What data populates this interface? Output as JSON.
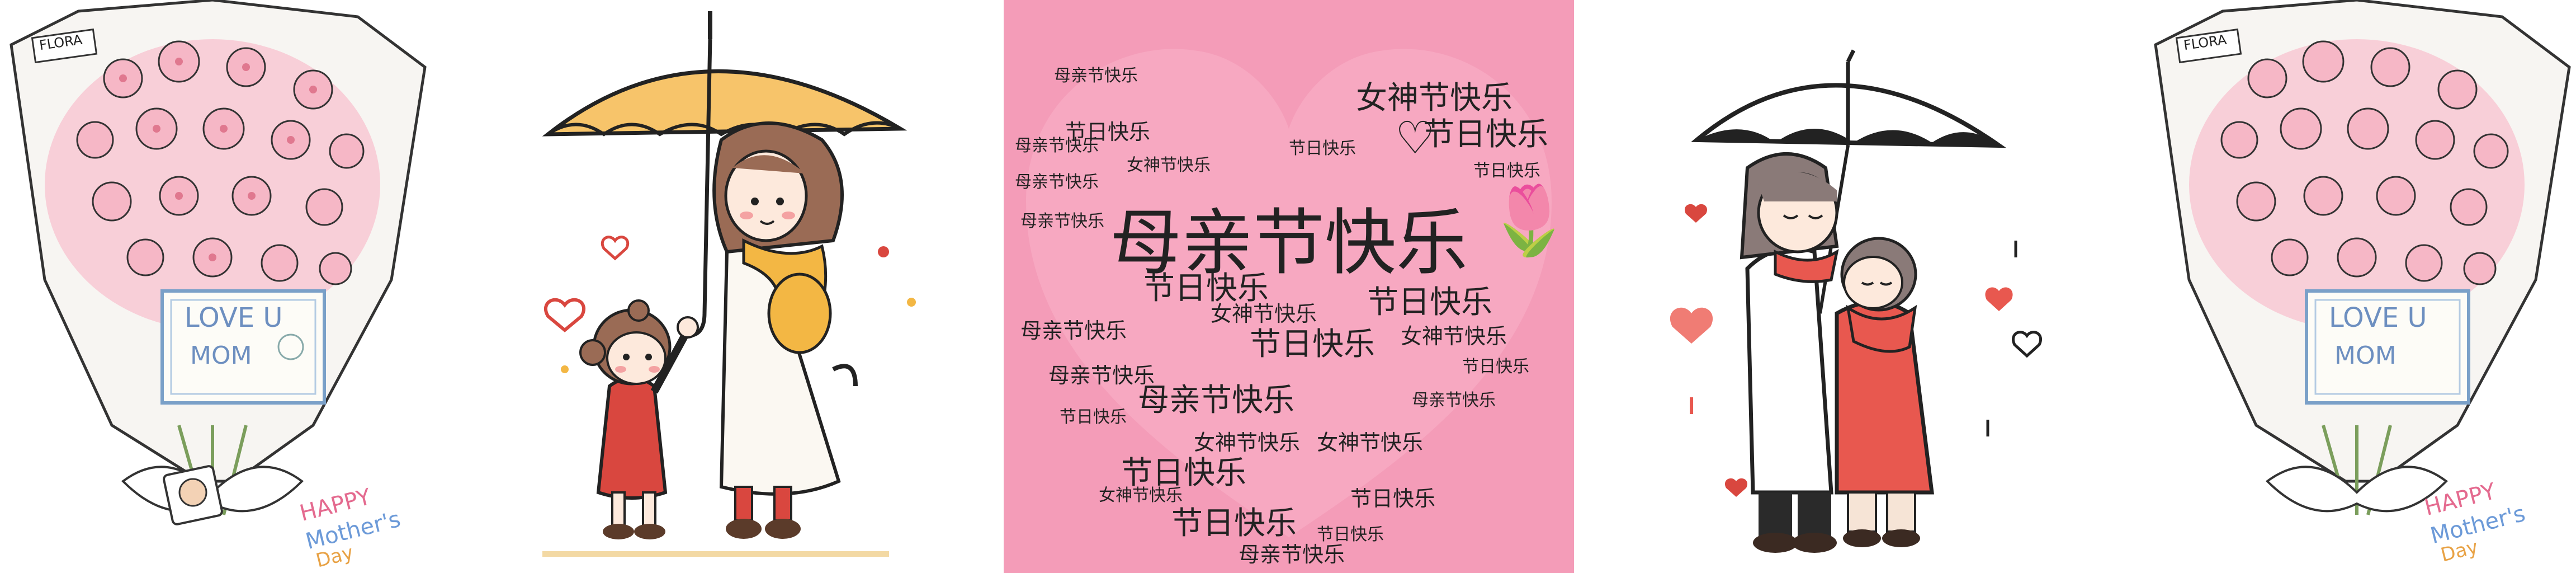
{
  "panels": {
    "bouquet_left": {
      "tag": "FLORA",
      "card_line1": "LOVE U",
      "card_line2": "MOM",
      "happy": "HAPPY",
      "mothers": "Mother's",
      "day": "Day"
    },
    "heart_cloud": {
      "main": "母亲节快乐",
      "phrases": [
        "母亲节快乐",
        "节日快乐",
        "女神节快乐"
      ]
    },
    "bouquet_right": {
      "tag": "FLORA",
      "card_line1": "LOVE U",
      "card_line2": "MOM",
      "happy": "HAPPY",
      "mothers": "Mother's",
      "day": "Day"
    }
  },
  "colors": {
    "pink_bg": "#f49cb8",
    "umbrella_yellow": "#f7c46a",
    "dress_red": "#d9473f",
    "scarf_red": "#e8584f",
    "flower_pink": "#f6b7c6"
  }
}
